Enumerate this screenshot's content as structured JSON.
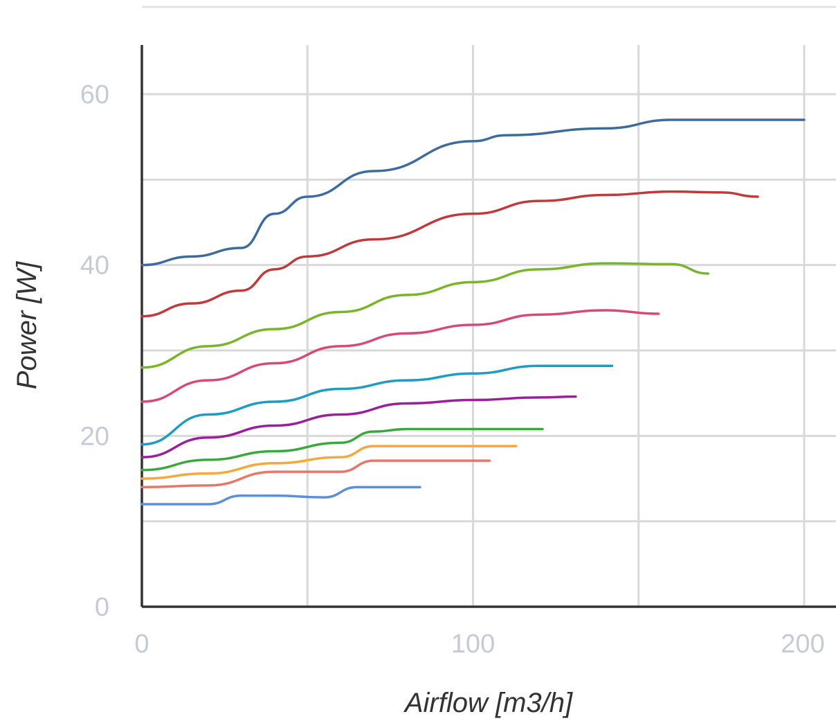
{
  "chart_data": {
    "type": "line",
    "xlabel": "Airflow [m3/h]",
    "ylabel": "Power [W]",
    "xlim": [
      0,
      200
    ],
    "ylim": [
      0,
      66
    ],
    "x_ticks": [
      "0",
      "100",
      "200"
    ],
    "x_tick_values": [
      0,
      100,
      200
    ],
    "y_ticks": [
      "0",
      "20",
      "40",
      "60"
    ],
    "y_tick_values": [
      0,
      20,
      40,
      60
    ],
    "x_gridlines": [
      0,
      50,
      100,
      150,
      200
    ],
    "y_gridlines": [
      10,
      20,
      30,
      40,
      50,
      60
    ],
    "grid": true,
    "legend": "none",
    "series": [
      {
        "color": "#3d6b9e",
        "points": [
          [
            0,
            40
          ],
          [
            15,
            41
          ],
          [
            30,
            42
          ],
          [
            40,
            46
          ],
          [
            50,
            48
          ],
          [
            70,
            51
          ],
          [
            100,
            54.5
          ],
          [
            110,
            55.2
          ],
          [
            140,
            56
          ],
          [
            160,
            57
          ],
          [
            200,
            57
          ]
        ]
      },
      {
        "color": "#c0393b",
        "points": [
          [
            0,
            34
          ],
          [
            15,
            35.5
          ],
          [
            30,
            37
          ],
          [
            40,
            39.5
          ],
          [
            50,
            41
          ],
          [
            70,
            43
          ],
          [
            100,
            46
          ],
          [
            120,
            47.5
          ],
          [
            140,
            48.2
          ],
          [
            160,
            48.6
          ],
          [
            175,
            48.5
          ],
          [
            186,
            48
          ]
        ]
      },
      {
        "color": "#7ab42a",
        "points": [
          [
            0,
            28
          ],
          [
            20,
            30.5
          ],
          [
            40,
            32.5
          ],
          [
            60,
            34.5
          ],
          [
            80,
            36.5
          ],
          [
            100,
            38
          ],
          [
            120,
            39.5
          ],
          [
            140,
            40.2
          ],
          [
            160,
            40.1
          ],
          [
            171,
            39
          ]
        ]
      },
      {
        "color": "#d64a7a",
        "points": [
          [
            0,
            24
          ],
          [
            20,
            26.5
          ],
          [
            40,
            28.5
          ],
          [
            60,
            30.5
          ],
          [
            80,
            32
          ],
          [
            100,
            33
          ],
          [
            120,
            34.2
          ],
          [
            140,
            34.7
          ],
          [
            156,
            34.3
          ]
        ]
      },
      {
        "color": "#1f9bc4",
        "points": [
          [
            0,
            19
          ],
          [
            20,
            22.5
          ],
          [
            40,
            24
          ],
          [
            60,
            25.5
          ],
          [
            80,
            26.5
          ],
          [
            100,
            27.3
          ],
          [
            120,
            28.2
          ],
          [
            142,
            28.2
          ]
        ]
      },
      {
        "color": "#9b1f9b",
        "points": [
          [
            0,
            17.5
          ],
          [
            20,
            19.8
          ],
          [
            40,
            21.2
          ],
          [
            60,
            22.5
          ],
          [
            80,
            23.8
          ],
          [
            100,
            24.2
          ],
          [
            120,
            24.5
          ],
          [
            131,
            24.6
          ]
        ]
      },
      {
        "color": "#3aa83f",
        "points": [
          [
            0,
            16
          ],
          [
            20,
            17.2
          ],
          [
            40,
            18.2
          ],
          [
            60,
            19.2
          ],
          [
            70,
            20.5
          ],
          [
            80,
            20.8
          ],
          [
            100,
            20.8
          ],
          [
            121,
            20.8
          ]
        ]
      },
      {
        "color": "#f4a93a",
        "points": [
          [
            0,
            15
          ],
          [
            20,
            15.6
          ],
          [
            40,
            16.8
          ],
          [
            60,
            17.5
          ],
          [
            70,
            18.8
          ],
          [
            100,
            18.8
          ],
          [
            113,
            18.8
          ]
        ]
      },
      {
        "color": "#e5786a",
        "points": [
          [
            0,
            14
          ],
          [
            20,
            14.2
          ],
          [
            40,
            15.8
          ],
          [
            60,
            15.8
          ],
          [
            70,
            17.1
          ],
          [
            90,
            17.1
          ],
          [
            105,
            17.1
          ]
        ]
      },
      {
        "color": "#5d8ed8",
        "points": [
          [
            0,
            12
          ],
          [
            20,
            12
          ],
          [
            30,
            13
          ],
          [
            40,
            13
          ],
          [
            55,
            12.8
          ],
          [
            65,
            14
          ],
          [
            84,
            14
          ]
        ]
      }
    ]
  }
}
